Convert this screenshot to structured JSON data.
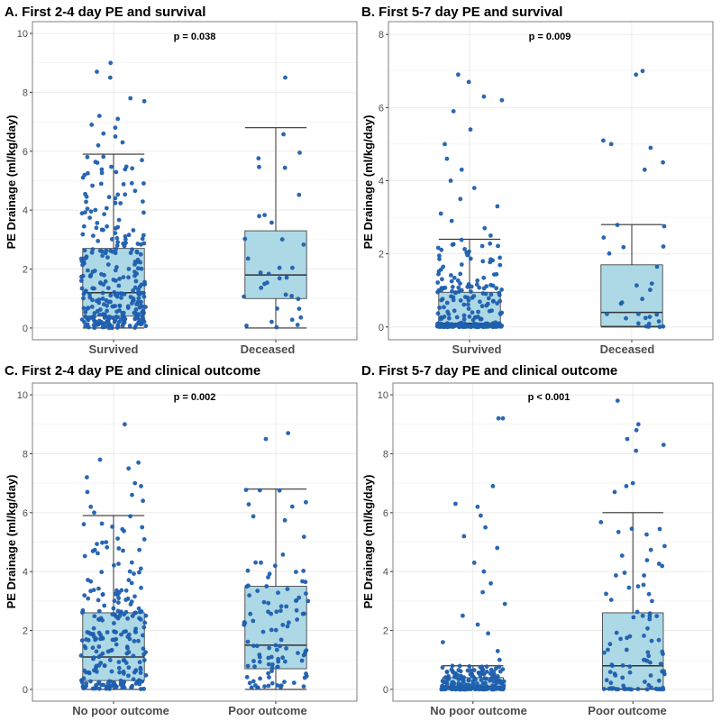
{
  "colors": {
    "box_fill": "#add8e6",
    "point": "#1f5fae",
    "grid": "#ebebeb",
    "frame": "#7f7f7f",
    "line": "#333333"
  },
  "chart_data": [
    {
      "type": "box",
      "title": "A. First 2-4 day PE and survival",
      "ylabel": "PE Drainage (ml/kg/day)",
      "ylim": [
        -0.4,
        10.4
      ],
      "yticks": [
        0,
        2,
        4,
        6,
        8,
        10
      ],
      "pvalue": "p = 0.038",
      "categories": [
        "Survived",
        "Deceased"
      ],
      "boxes": [
        {
          "min": 0,
          "q1": 0.4,
          "median": 1.2,
          "q3": 2.7,
          "max": 5.9,
          "n_points": 300,
          "outliers": [
            6.2,
            6.3,
            6.5,
            6.6,
            6.8,
            6.9,
            7.1,
            7.2,
            7.7,
            7.8,
            8.5,
            8.7,
            9.0
          ]
        },
        {
          "min": 0,
          "q1": 1.0,
          "median": 1.8,
          "q3": 3.3,
          "max": 6.8,
          "n_points": 34,
          "outliers": [
            8.5
          ]
        }
      ]
    },
    {
      "type": "box",
      "title": "B. First 5-7 day PE and survival",
      "ylabel": "PE Drainage (ml/kg/day)",
      "ylim": [
        -0.35,
        8.35
      ],
      "yticks": [
        0,
        2,
        4,
        6,
        8
      ],
      "pvalue": "p = 0.009",
      "categories": [
        "Survived",
        "Deceased"
      ],
      "boxes": [
        {
          "min": 0,
          "q1": 0.02,
          "median": 0.1,
          "q3": 0.95,
          "max": 2.4,
          "n_points": 230,
          "outliers": [
            2.5,
            2.7,
            2.9,
            3.1,
            3.3,
            3.5,
            3.8,
            4.0,
            4.3,
            4.6,
            5.0,
            5.4,
            5.9,
            6.2,
            6.3,
            6.7,
            6.9
          ]
        },
        {
          "min": 0,
          "q1": 0.02,
          "median": 0.4,
          "q3": 1.7,
          "max": 2.8,
          "n_points": 26,
          "outliers": [
            4.3,
            4.5,
            4.9,
            5.0,
            5.1,
            6.9,
            7.0
          ]
        }
      ]
    },
    {
      "type": "box",
      "title": "C. First 2-4 day PE and clinical outcome",
      "ylabel": "PE Drainage (ml/kg/day)",
      "ylim": [
        -0.4,
        10.4
      ],
      "yticks": [
        0,
        2,
        4,
        6,
        8,
        10
      ],
      "pvalue": "p = 0.002",
      "categories": [
        "No poor outcome",
        "Poor outcome"
      ],
      "boxes": [
        {
          "min": 0,
          "q1": 0.3,
          "median": 1.1,
          "q3": 2.6,
          "max": 5.9,
          "n_points": 240,
          "outliers": [
            6.0,
            6.2,
            6.4,
            6.6,
            6.7,
            6.9,
            7.0,
            7.2,
            7.5,
            7.7,
            7.8,
            9.0
          ]
        },
        {
          "min": 0,
          "q1": 0.7,
          "median": 1.5,
          "q3": 3.5,
          "max": 6.8,
          "n_points": 110,
          "outliers": [
            8.5,
            8.7
          ]
        }
      ]
    },
    {
      "type": "box",
      "title": "D. First 5-7 day PE and clinical outcome",
      "ylabel": "PE Drainage (ml/kg/day)",
      "ylim": [
        -0.4,
        10.4
      ],
      "yticks": [
        0,
        2,
        4,
        6,
        8,
        10
      ],
      "pvalue": "p < 0.001",
      "categories": [
        "No poor outcome",
        "Poor outcome"
      ],
      "boxes": [
        {
          "min": 0,
          "q1": 0.02,
          "median": 0.1,
          "q3": 0.4,
          "max": 0.8,
          "n_points": 200,
          "outliers": [
            1.0,
            1.3,
            1.6,
            1.9,
            2.2,
            2.5,
            2.9,
            3.3,
            3.6,
            4.0,
            4.3,
            4.8,
            5.2,
            5.5,
            5.9,
            6.2,
            6.3,
            6.9,
            9.2,
            9.2
          ]
        },
        {
          "min": 0,
          "q1": 0.02,
          "median": 0.8,
          "q3": 2.6,
          "max": 6.0,
          "n_points": 90,
          "outliers": [
            6.7,
            6.9,
            7.0,
            8.1,
            8.3,
            8.5,
            8.8,
            9.0,
            9.8
          ]
        }
      ]
    }
  ]
}
